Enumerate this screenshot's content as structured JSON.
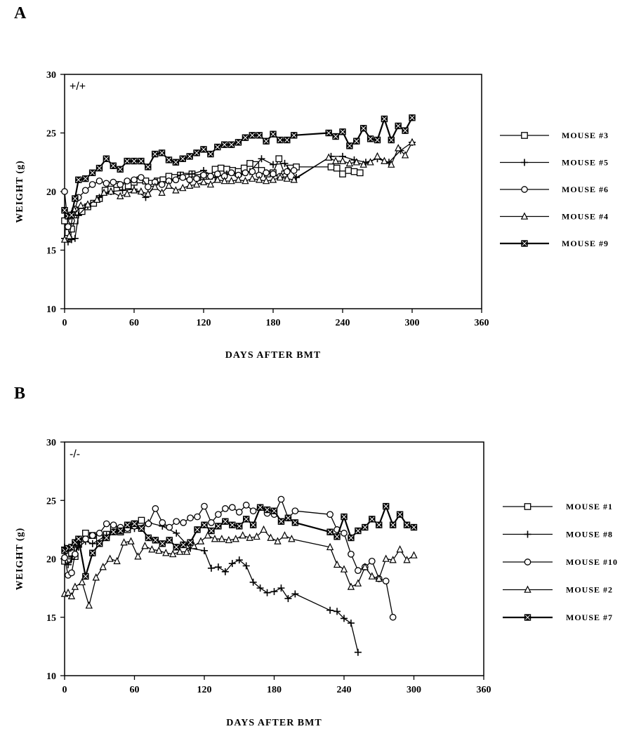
{
  "panels": [
    {
      "letter": "A"
    },
    {
      "letter": "B"
    }
  ],
  "chart_data": [
    {
      "type": "line",
      "annotation": "+/+",
      "xlabel": "DAYS AFTER BMT",
      "ylabel": "WEIGHT (g)",
      "xlim": [
        0,
        360
      ],
      "ylim": [
        10,
        30
      ],
      "xticks": [
        0,
        60,
        120,
        180,
        240,
        300,
        360
      ],
      "yticks": [
        10,
        15,
        20,
        25,
        30
      ],
      "legend_position": "right",
      "series": [
        {
          "name": "MOUSE #3",
          "marker": "square",
          "x": [
            0,
            3,
            6,
            9,
            12,
            15,
            20,
            25,
            30,
            35,
            40,
            45,
            50,
            55,
            60,
            65,
            70,
            75,
            80,
            85,
            90,
            95,
            100,
            105,
            110,
            115,
            120,
            125,
            130,
            135,
            140,
            145,
            150,
            155,
            160,
            165,
            170,
            175,
            180,
            185,
            190,
            195,
            200,
            230,
            235,
            240,
            245,
            250,
            255
          ],
          "y": [
            17.5,
            16.5,
            16.8,
            17.5,
            18.2,
            18.3,
            18.7,
            19.0,
            19.4,
            20.1,
            20.2,
            20.6,
            20.4,
            20.5,
            20.8,
            21.0,
            20.9,
            20.7,
            20.9,
            21.0,
            21.3,
            21.2,
            21.4,
            21.3,
            21.5,
            21.2,
            21.3,
            21.3,
            21.9,
            22.0,
            21.9,
            21.8,
            21.7,
            22.0,
            22.4,
            22.3,
            21.8,
            21.5,
            21.6,
            22.8,
            21.5,
            22.0,
            22.1,
            22.1,
            22.0,
            21.5,
            21.8,
            21.7,
            21.6
          ]
        },
        {
          "name": "MOUSE #5",
          "marker": "plus",
          "x": [
            0,
            3,
            6,
            9,
            12,
            20,
            30,
            40,
            50,
            60,
            70,
            80,
            90,
            100,
            110,
            120,
            130,
            140,
            150,
            160,
            170,
            180,
            190,
            200,
            230,
            240,
            250,
            260,
            270,
            280,
            290,
            300
          ],
          "y": [
            16.0,
            15.7,
            15.9,
            16.0,
            18.0,
            18.8,
            19.5,
            20.0,
            20.1,
            20.2,
            19.5,
            20.8,
            20.9,
            21.4,
            21.5,
            21.8,
            21.2,
            21.5,
            21.3,
            21.7,
            22.8,
            22.3,
            22.4,
            21.2,
            23.0,
            23.0,
            22.7,
            22.5,
            22.8,
            22.5,
            23.5,
            24.2
          ]
        },
        {
          "name": "MOUSE #6",
          "marker": "circle",
          "x": [
            0,
            3,
            6,
            9,
            12,
            18,
            24,
            30,
            36,
            42,
            48,
            54,
            60,
            66,
            72,
            78,
            84,
            90,
            96,
            102,
            108,
            114,
            120,
            126,
            132,
            138,
            144,
            150,
            156,
            162,
            168,
            174,
            180,
            186,
            192,
            198
          ],
          "y": [
            20.0,
            17.0,
            17.5,
            18.5,
            19.5,
            20.1,
            20.6,
            20.9,
            20.7,
            20.8,
            20.6,
            20.9,
            21.0,
            21.2,
            20.4,
            20.8,
            20.6,
            20.9,
            21.0,
            21.2,
            21.0,
            21.1,
            21.4,
            21.3,
            21.5,
            21.3,
            21.6,
            21.4,
            21.6,
            21.7,
            21.4,
            21.6,
            21.5,
            21.3,
            21.7,
            21.8
          ]
        },
        {
          "name": "MOUSE #4",
          "marker": "triangle",
          "x": [
            0,
            4,
            8,
            14,
            20,
            28,
            34,
            40,
            48,
            54,
            60,
            66,
            72,
            78,
            84,
            90,
            96,
            102,
            108,
            114,
            120,
            126,
            132,
            138,
            144,
            150,
            156,
            162,
            168,
            174,
            180,
            186,
            192,
            198,
            228,
            234,
            240,
            246,
            252,
            258,
            264,
            270,
            276,
            282,
            288,
            294,
            300
          ],
          "y": [
            15.9,
            16.2,
            18.5,
            18.8,
            18.9,
            19.3,
            19.9,
            20.0,
            19.6,
            19.8,
            20.1,
            20.0,
            19.8,
            20.4,
            19.9,
            20.5,
            20.1,
            20.3,
            20.5,
            20.6,
            20.8,
            20.6,
            21.0,
            20.9,
            20.9,
            21.0,
            20.9,
            21.1,
            21.0,
            20.9,
            21.0,
            21.2,
            21.1,
            21.0,
            22.9,
            22.6,
            22.6,
            22.4,
            22.5,
            22.3,
            22.5,
            23.0,
            22.6,
            22.3,
            23.7,
            23.1,
            24.2
          ]
        },
        {
          "name": "MOUSE #9",
          "marker": "cross-square",
          "x": [
            0,
            3,
            6,
            9,
            12,
            18,
            24,
            30,
            36,
            42,
            48,
            54,
            60,
            66,
            72,
            78,
            84,
            90,
            96,
            102,
            108,
            114,
            120,
            126,
            132,
            138,
            144,
            150,
            156,
            162,
            168,
            174,
            180,
            186,
            192,
            198,
            228,
            234,
            240,
            246,
            252,
            258,
            264,
            270,
            276,
            282,
            288,
            294,
            300
          ],
          "y": [
            18.4,
            17.9,
            18.0,
            19.4,
            21.0,
            21.1,
            21.6,
            22.0,
            22.8,
            22.2,
            21.9,
            22.6,
            22.6,
            22.6,
            22.1,
            23.2,
            23.3,
            22.7,
            22.5,
            22.8,
            23.0,
            23.3,
            23.6,
            23.2,
            23.8,
            24.0,
            24.0,
            24.2,
            24.6,
            24.8,
            24.8,
            24.3,
            24.9,
            24.4,
            24.4,
            24.8,
            25.0,
            24.7,
            25.1,
            23.9,
            24.3,
            25.4,
            24.5,
            24.4,
            26.2,
            24.4,
            25.6,
            25.2,
            26.3
          ]
        }
      ]
    },
    {
      "type": "line",
      "annotation": "-/-",
      "xlabel": "DAYS AFTER BMT",
      "ylabel": "WEIGHT (g)",
      "xlim": [
        0,
        360
      ],
      "ylim": [
        10,
        30
      ],
      "xticks": [
        0,
        60,
        120,
        180,
        240,
        300,
        360
      ],
      "yticks": [
        10,
        15,
        20,
        25,
        30
      ],
      "legend_position": "right",
      "series": [
        {
          "name": "MOUSE #1",
          "marker": "square",
          "x": [
            0,
            3,
            6,
            9,
            12,
            18,
            24,
            30,
            36,
            42,
            48,
            54,
            60,
            66
          ],
          "y": [
            19.8,
            19.9,
            20.5,
            20.2,
            21.3,
            22.2,
            22.0,
            21.8,
            22.1,
            22.5,
            22.3,
            22.5,
            23.0,
            23.3
          ]
        },
        {
          "name": "MOUSE #8",
          "marker": "plus",
          "x": [
            0,
            3,
            6,
            12,
            18,
            24,
            36,
            48,
            60,
            72,
            84,
            96,
            108,
            120,
            126,
            132,
            138,
            144,
            150,
            156,
            162,
            168,
            174,
            180,
            186,
            192,
            198,
            228,
            234,
            240,
            246,
            252
          ],
          "y": [
            21.0,
            19.5,
            20.0,
            21.0,
            21.5,
            21.3,
            22.0,
            22.5,
            22.6,
            23.1,
            22.8,
            22.2,
            20.9,
            20.7,
            19.2,
            19.3,
            18.9,
            19.6,
            19.9,
            19.4,
            18.0,
            17.5,
            17.1,
            17.2,
            17.5,
            16.6,
            17.0,
            15.6,
            15.5,
            14.9,
            14.5,
            12.0
          ]
        },
        {
          "name": "MOUSE #10",
          "marker": "circle",
          "x": [
            0,
            3,
            6,
            9,
            12,
            18,
            24,
            30,
            36,
            42,
            48,
            54,
            60,
            66,
            72,
            78,
            84,
            90,
            96,
            102,
            108,
            114,
            120,
            126,
            132,
            138,
            144,
            150,
            156,
            162,
            168,
            174,
            180,
            186,
            192,
            198,
            228,
            234,
            240,
            246,
            252,
            258,
            264,
            270,
            276,
            282
          ],
          "y": [
            20.1,
            18.6,
            18.8,
            20.4,
            21.6,
            21.7,
            22.0,
            22.2,
            23.0,
            22.9,
            22.7,
            22.6,
            22.8,
            22.6,
            23.0,
            24.3,
            23.1,
            22.7,
            23.2,
            23.1,
            23.5,
            23.6,
            24.5,
            23.1,
            23.8,
            24.3,
            24.4,
            24.0,
            24.6,
            24.1,
            24.4,
            23.9,
            23.8,
            25.1,
            23.5,
            24.1,
            23.8,
            22.5,
            22.2,
            20.4,
            19.0,
            19.3,
            19.8,
            18.3,
            18.1,
            15.0
          ]
        },
        {
          "name": "MOUSE #2",
          "marker": "triangle",
          "x": [
            0,
            3,
            6,
            9,
            15,
            21,
            27,
            33,
            39,
            45,
            51,
            57,
            63,
            69,
            75,
            81,
            87,
            93,
            99,
            105,
            111,
            117,
            123,
            129,
            135,
            141,
            147,
            153,
            159,
            165,
            171,
            177,
            183,
            189,
            195,
            228,
            234,
            240,
            246,
            252,
            258,
            264,
            270,
            276,
            282,
            288,
            294,
            300
          ],
          "y": [
            17.0,
            17.1,
            16.8,
            17.6,
            18.0,
            16.0,
            18.4,
            19.3,
            20.0,
            19.8,
            21.4,
            21.5,
            20.2,
            21.1,
            20.8,
            20.7,
            20.5,
            20.4,
            20.6,
            20.6,
            21.1,
            21.5,
            22.0,
            21.7,
            21.7,
            21.6,
            21.7,
            22.0,
            21.8,
            21.9,
            22.5,
            21.8,
            21.5,
            22.0,
            21.7,
            21.0,
            19.5,
            19.1,
            17.6,
            17.9,
            19.3,
            18.5,
            18.3,
            20.0,
            19.9,
            20.8,
            19.9,
            20.3
          ]
        },
        {
          "name": "MOUSE #7",
          "marker": "cross-square",
          "x": [
            0,
            3,
            6,
            9,
            12,
            18,
            24,
            30,
            36,
            42,
            48,
            54,
            60,
            66,
            72,
            78,
            84,
            90,
            96,
            102,
            108,
            114,
            120,
            126,
            132,
            138,
            144,
            150,
            156,
            162,
            168,
            174,
            180,
            186,
            192,
            198,
            228,
            234,
            240,
            246,
            252,
            258,
            264,
            270,
            276,
            282,
            288,
            294,
            300
          ],
          "y": [
            20.7,
            20.9,
            21.0,
            21.4,
            21.7,
            18.5,
            20.5,
            21.3,
            21.8,
            22.3,
            22.4,
            22.9,
            23.0,
            22.6,
            21.8,
            21.6,
            21.3,
            21.6,
            21.0,
            21.2,
            21.4,
            22.5,
            22.9,
            22.4,
            22.8,
            23.2,
            22.9,
            22.8,
            23.4,
            22.9,
            24.4,
            24.2,
            24.1,
            23.2,
            23.5,
            23.1,
            22.3,
            21.9,
            23.6,
            21.8,
            22.4,
            22.7,
            23.4,
            22.9,
            24.5,
            22.9,
            23.8,
            22.9,
            22.7
          ]
        }
      ]
    }
  ]
}
